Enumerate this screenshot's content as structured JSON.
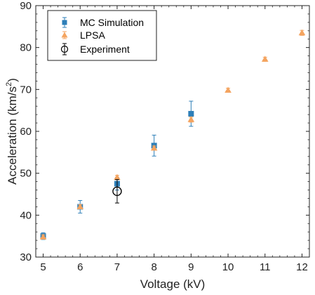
{
  "chart_data": {
    "type": "scatter",
    "xlabel": "Voltage (kV)",
    "ylabel_main": "Acceleration (km/s",
    "ylabel_sup": "2",
    "ylabel_tail": ")",
    "xlim": [
      4.8,
      12.2
    ],
    "ylim": [
      30,
      90
    ],
    "xticks": [
      5,
      6,
      7,
      8,
      9,
      10,
      11,
      12
    ],
    "yticks": [
      30,
      40,
      50,
      60,
      70,
      80,
      90
    ],
    "grid": false,
    "legend_position": "top-left",
    "series": [
      {
        "name": "MC Simulation",
        "marker": "square",
        "color": "#2e7fb8",
        "points": [
          {
            "x": 5,
            "y": 35.0,
            "err": 0.8
          },
          {
            "x": 6,
            "y": 42.0,
            "err": 1.5
          },
          {
            "x": 7,
            "y": 47.5,
            "err": 1.5
          },
          {
            "x": 8,
            "y": 56.6,
            "err": 2.5
          },
          {
            "x": 9,
            "y": 64.2,
            "err": 3.0
          }
        ]
      },
      {
        "name": "LPSA",
        "marker": "triangle",
        "color": "#f4a460",
        "points": [
          {
            "x": 5,
            "y": 34.8,
            "err": 0.5
          },
          {
            "x": 6,
            "y": 42.0,
            "err": 0.5
          },
          {
            "x": 7,
            "y": 49.0,
            "err": 0.5
          },
          {
            "x": 8,
            "y": 56.0,
            "err": 0.5
          },
          {
            "x": 9,
            "y": 62.8,
            "err": 0.6
          },
          {
            "x": 10,
            "y": 69.8,
            "err": 0.5
          },
          {
            "x": 11,
            "y": 77.2,
            "err": 0.5
          },
          {
            "x": 12,
            "y": 83.5,
            "err": 0.6
          }
        ]
      },
      {
        "name": "Experiment",
        "marker": "circle-open",
        "color": "#000000",
        "points": [
          {
            "x": 7,
            "y": 45.7,
            "err": 2.8
          }
        ]
      }
    ]
  }
}
